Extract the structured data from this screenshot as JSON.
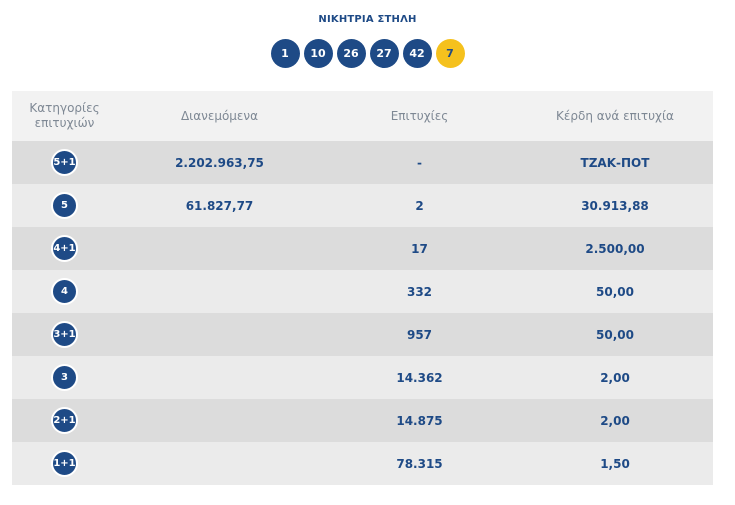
{
  "winning_title": "ΝΙΚΗΤΡΙΑ ΣΤΗΛΗ",
  "winning_numbers": [
    "1",
    "10",
    "26",
    "27",
    "42"
  ],
  "joker_number": "7",
  "colors": {
    "primary": "#1e4a86",
    "joker": "#f5c11d"
  },
  "table": {
    "headers": {
      "category": "Κατηγορίες επιτυχιών",
      "distributed": "Διανεμόμενα",
      "winners": "Επιτυχίες",
      "prize": "Κέρδη ανά επιτυχία"
    },
    "rows": [
      {
        "category": "5+1",
        "distributed": "2.202.963,75",
        "winners": "-",
        "prize": "ΤΖΑΚ-ΠΟΤ"
      },
      {
        "category": "5",
        "distributed": "61.827,77",
        "winners": "2",
        "prize": "30.913,88"
      },
      {
        "category": "4+1",
        "distributed": "",
        "winners": "17",
        "prize": "2.500,00"
      },
      {
        "category": "4",
        "distributed": "",
        "winners": "332",
        "prize": "50,00"
      },
      {
        "category": "3+1",
        "distributed": "",
        "winners": "957",
        "prize": "50,00"
      },
      {
        "category": "3",
        "distributed": "",
        "winners": "14.362",
        "prize": "2,00"
      },
      {
        "category": "2+1",
        "distributed": "",
        "winners": "14.875",
        "prize": "2,00"
      },
      {
        "category": "1+1",
        "distributed": "",
        "winners": "78.315",
        "prize": "1,50"
      }
    ]
  }
}
